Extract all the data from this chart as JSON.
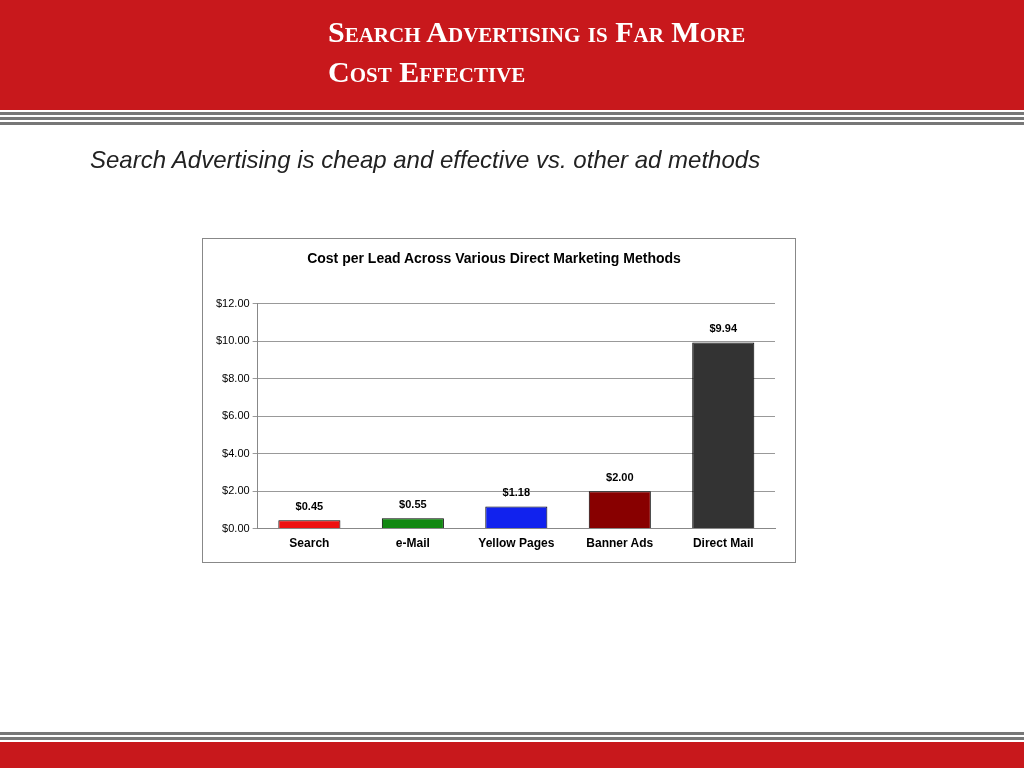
{
  "chart_data": {
    "type": "bar",
    "title": "Search Advertising is Far More Cost Effective",
    "subtitle": "Search Advertising is cheap and effective vs. other ad methods",
    "annotations": [
      "Cost per Lead Across Various Direct Marketing Methods"
    ],
    "categories": [
      "Search",
      "e-Mail",
      "Yellow Pages",
      "Banner Ads",
      "Direct Mail"
    ],
    "values": [
      0.45,
      0.55,
      1.18,
      2.0,
      9.94
    ],
    "colors": [
      "#ee1111",
      "#118811",
      "#1122ee",
      "#880000",
      "#333333"
    ],
    "value_labels": [
      "$0.45",
      "$0.55",
      "$1.18",
      "$2.00",
      "$9.94"
    ],
    "ylim": [
      0,
      12
    ],
    "yticks": [
      {
        "value": 0,
        "label": "$0.00"
      },
      {
        "value": 2,
        "label": "$2.00"
      },
      {
        "value": 4,
        "label": "$4.00"
      },
      {
        "value": 6,
        "label": "$6.00"
      },
      {
        "value": 8,
        "label": "$8.00"
      },
      {
        "value": 10,
        "label": "$10.00"
      },
      {
        "value": 12,
        "label": "$12.00"
      }
    ],
    "grid": "y",
    "legend": false
  }
}
